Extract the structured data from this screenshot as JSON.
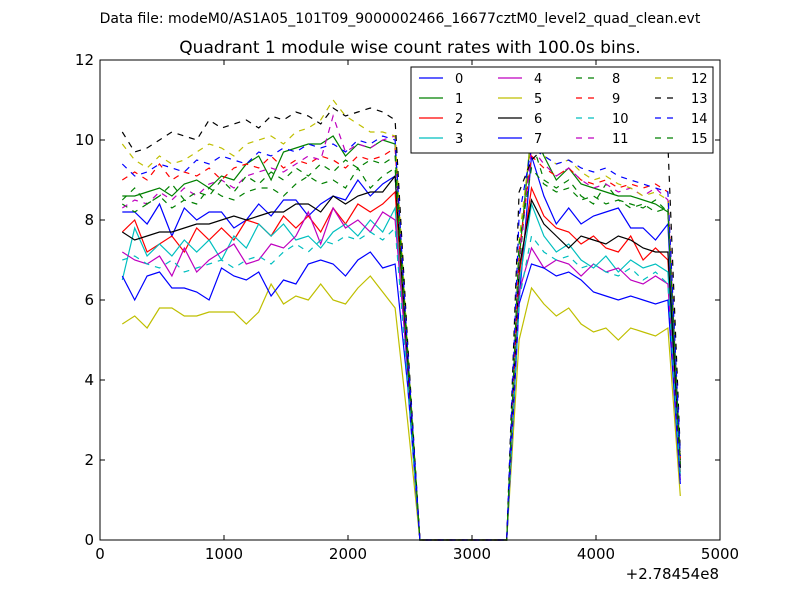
{
  "chart_data": {
    "type": "line",
    "suptitle": "Data file: modeM0/AS1A05_101T09_9000002466_16677cztM0_level2_quad_clean.evt",
    "title": "Quadrant 1 module wise count rates with 100.0s bins.",
    "xlabel": "",
    "ylabel": "",
    "x_offset_label": "+2.78454e8",
    "xlim": [
      0,
      5000
    ],
    "ylim": [
      0,
      12
    ],
    "xticks": [
      0,
      1000,
      2000,
      3000,
      4000,
      5000
    ],
    "yticks": [
      0,
      2,
      4,
      6,
      8,
      10,
      12
    ],
    "xtick_labels": [
      "0",
      "1000",
      "2000",
      "3000",
      "4000",
      "5000"
    ],
    "ytick_labels": [
      "0",
      "2",
      "4",
      "6",
      "8",
      "10",
      "12"
    ],
    "grid": false,
    "legend_position": "top-right",
    "legend_columns": 4,
    "x": [
      180,
      280,
      380,
      480,
      580,
      680,
      780,
      880,
      980,
      1080,
      1180,
      1280,
      1380,
      1480,
      1580,
      1680,
      1780,
      1880,
      1980,
      2080,
      2180,
      2280,
      2380,
      2480,
      2580,
      2680,
      2780,
      2880,
      2980,
      3080,
      3180,
      3280,
      3380,
      3480,
      3580,
      3680,
      3780,
      3880,
      3980,
      4080,
      4180,
      4280,
      4380,
      4480,
      4580,
      4680
    ],
    "series": [
      {
        "name": "0",
        "color": "#0000ff",
        "dash": false,
        "values": [
          8.2,
          8.2,
          7.9,
          8.4,
          7.6,
          8.3,
          8.0,
          8.2,
          8.2,
          7.8,
          8.0,
          8.4,
          8.1,
          8.5,
          8.5,
          8.1,
          8.4,
          8.6,
          8.5,
          9.0,
          8.6,
          8.9,
          9.1,
          4.5,
          0,
          0,
          0,
          0,
          0,
          0,
          0,
          0,
          6.0,
          9.6,
          8.6,
          7.9,
          8.3,
          7.9,
          8.1,
          8.2,
          8.3,
          7.8,
          7.8,
          7.5,
          7.9,
          1.8
        ]
      },
      {
        "name": "1",
        "color": "#008000",
        "dash": false,
        "values": [
          8.6,
          8.6,
          8.7,
          8.8,
          8.6,
          8.9,
          9.0,
          8.8,
          9.1,
          9.0,
          9.4,
          9.6,
          9.0,
          9.7,
          9.8,
          9.9,
          9.9,
          10.1,
          9.6,
          9.9,
          9.8,
          10.0,
          9.9,
          4.6,
          0,
          0,
          0,
          0,
          0,
          0,
          0,
          0,
          7.0,
          10.3,
          9.6,
          9.0,
          9.3,
          8.9,
          8.8,
          8.7,
          8.6,
          8.6,
          8.5,
          8.4,
          8.2,
          2.0
        ]
      },
      {
        "name": "2",
        "color": "#ff0000",
        "dash": false,
        "values": [
          7.7,
          8.0,
          7.2,
          7.4,
          7.6,
          7.2,
          7.8,
          7.5,
          7.8,
          7.5,
          8.0,
          7.9,
          7.6,
          8.1,
          7.8,
          8.1,
          7.7,
          8.3,
          7.9,
          8.4,
          8.2,
          8.4,
          8.7,
          4.4,
          0,
          0,
          0,
          0,
          0,
          0,
          0,
          0,
          6.6,
          8.8,
          8.1,
          7.8,
          7.7,
          7.4,
          7.6,
          7.3,
          7.2,
          7.6,
          7.0,
          7.3,
          7.0,
          1.7
        ]
      },
      {
        "name": "3",
        "color": "#00bfbf",
        "dash": false,
        "values": [
          6.5,
          7.8,
          7.1,
          7.4,
          7.1,
          7.5,
          7.2,
          7.5,
          7.0,
          7.6,
          7.3,
          7.9,
          7.6,
          7.9,
          7.5,
          7.6,
          7.3,
          7.7,
          7.9,
          7.6,
          8.0,
          7.7,
          8.3,
          4.2,
          0,
          0,
          0,
          0,
          0,
          0,
          0,
          0,
          6.4,
          8.4,
          7.6,
          7.2,
          7.4,
          7.0,
          6.8,
          7.1,
          6.7,
          7.0,
          6.8,
          6.9,
          6.7,
          1.6
        ]
      },
      {
        "name": "4",
        "color": "#bf00bf",
        "dash": false,
        "values": [
          7.2,
          7.0,
          6.9,
          7.1,
          6.6,
          7.3,
          6.7,
          7.0,
          7.2,
          7.4,
          6.9,
          7.0,
          7.4,
          7.3,
          7.6,
          8.2,
          7.4,
          8.3,
          7.8,
          8.0,
          7.7,
          8.2,
          8.0,
          4.3,
          0,
          0,
          0,
          0,
          0,
          0,
          0,
          0,
          6.2,
          7.3,
          6.8,
          7.0,
          6.9,
          6.6,
          6.9,
          6.7,
          6.8,
          6.5,
          6.4,
          6.6,
          6.4,
          1.5
        ]
      },
      {
        "name": "5",
        "color": "#bfbf00",
        "dash": false,
        "values": [
          5.4,
          5.6,
          5.3,
          5.8,
          5.8,
          5.6,
          5.6,
          5.7,
          5.7,
          5.7,
          5.4,
          5.7,
          6.4,
          5.9,
          6.1,
          6.0,
          6.4,
          6.0,
          5.9,
          6.3,
          6.6,
          6.2,
          5.8,
          3.0,
          0,
          0,
          0,
          0,
          0,
          0,
          0,
          0,
          5.0,
          6.3,
          5.9,
          5.6,
          5.8,
          5.4,
          5.2,
          5.3,
          5.0,
          5.3,
          5.2,
          5.1,
          5.3,
          1.1
        ]
      },
      {
        "name": "6",
        "color": "#000000",
        "dash": false,
        "values": [
          7.7,
          7.5,
          7.6,
          7.7,
          7.7,
          7.8,
          7.9,
          7.9,
          8.0,
          8.1,
          8.0,
          8.1,
          8.2,
          8.2,
          8.4,
          8.4,
          8.2,
          8.6,
          8.4,
          8.6,
          8.7,
          8.7,
          9.1,
          4.5,
          0,
          0,
          0,
          0,
          0,
          0,
          0,
          0,
          6.8,
          8.5,
          7.9,
          7.6,
          7.3,
          7.6,
          7.5,
          7.4,
          7.6,
          7.5,
          7.3,
          7.2,
          7.2,
          1.8
        ]
      },
      {
        "name": "7",
        "color": "#0000ff",
        "dash": false,
        "values": [
          6.6,
          6.0,
          6.6,
          6.7,
          6.3,
          6.3,
          6.2,
          6.0,
          6.8,
          6.6,
          6.5,
          6.7,
          6.1,
          6.5,
          6.4,
          6.9,
          7.0,
          6.9,
          6.6,
          7.0,
          7.2,
          6.8,
          6.9,
          3.9,
          0,
          0,
          0,
          0,
          0,
          0,
          0,
          0,
          5.9,
          6.9,
          6.8,
          6.6,
          6.7,
          6.5,
          6.2,
          6.1,
          6.0,
          6.1,
          6.0,
          5.9,
          6.0,
          1.4
        ]
      },
      {
        "name": "8",
        "color": "#008000",
        "dash": true,
        "values": [
          8.4,
          8.2,
          8.4,
          8.6,
          8.3,
          8.5,
          8.4,
          8.8,
          8.6,
          8.5,
          8.7,
          8.8,
          8.8,
          8.6,
          8.9,
          9.1,
          8.9,
          9.0,
          8.8,
          9.3,
          8.8,
          9.1,
          9.3,
          4.6,
          0,
          0,
          0,
          0,
          0,
          0,
          0,
          0,
          6.8,
          10.0,
          9.0,
          8.8,
          9.0,
          8.6,
          8.4,
          8.9,
          8.5,
          8.4,
          8.3,
          8.5,
          8.2,
          1.9
        ]
      },
      {
        "name": "9",
        "color": "#ff0000",
        "dash": true,
        "values": [
          9.0,
          9.2,
          9.0,
          9.4,
          9.0,
          9.2,
          9.1,
          9.3,
          9.0,
          9.3,
          9.4,
          9.3,
          9.6,
          9.3,
          9.5,
          9.4,
          9.6,
          9.5,
          9.3,
          9.6,
          9.5,
          9.6,
          9.8,
          4.8,
          0,
          0,
          0,
          0,
          0,
          0,
          0,
          0,
          7.2,
          9.6,
          9.3,
          9.1,
          9.3,
          9.0,
          8.9,
          9.0,
          8.8,
          8.9,
          8.8,
          8.9,
          8.7,
          2.0
        ]
      },
      {
        "name": "10",
        "color": "#00bfbf",
        "dash": true,
        "values": [
          7.0,
          7.1,
          6.9,
          6.8,
          7.0,
          6.7,
          6.8,
          6.9,
          7.0,
          6.8,
          7.0,
          7.1,
          6.9,
          7.2,
          7.4,
          7.2,
          7.5,
          7.4,
          7.6,
          7.5,
          7.7,
          7.5,
          7.8,
          4.0,
          0,
          0,
          0,
          0,
          0,
          0,
          0,
          0,
          6.0,
          7.6,
          7.2,
          7.0,
          7.1,
          6.8,
          6.9,
          6.7,
          6.6,
          6.8,
          6.5,
          6.7,
          6.4,
          1.6
        ]
      },
      {
        "name": "11",
        "color": "#bf00bf",
        "dash": true,
        "values": [
          8.3,
          8.5,
          8.4,
          8.7,
          8.5,
          8.8,
          8.6,
          8.9,
          9.0,
          8.8,
          9.1,
          9.2,
          9.3,
          9.2,
          9.4,
          9.6,
          9.5,
          10.6,
          9.7,
          9.9,
          9.8,
          10.0,
          10.1,
          4.7,
          0,
          0,
          0,
          0,
          0,
          0,
          0,
          0,
          7.0,
          9.8,
          9.4,
          9.1,
          9.3,
          9.0,
          8.8,
          8.9,
          8.7,
          8.8,
          8.6,
          8.8,
          8.5,
          1.9
        ]
      },
      {
        "name": "12",
        "color": "#bfbf00",
        "dash": true,
        "values": [
          9.9,
          9.5,
          9.3,
          9.6,
          9.4,
          9.5,
          9.7,
          9.9,
          9.8,
          9.6,
          9.9,
          10.0,
          10.1,
          9.9,
          10.2,
          10.3,
          10.5,
          11.0,
          10.6,
          10.4,
          10.2,
          10.2,
          10.1,
          4.9,
          0,
          0,
          0,
          0,
          0,
          0,
          0,
          0,
          7.5,
          10.1,
          9.6,
          9.4,
          9.5,
          9.2,
          9.0,
          9.1,
          8.9,
          8.8,
          8.6,
          8.7,
          8.5,
          2.1
        ]
      },
      {
        "name": "13",
        "color": "#000000",
        "dash": true,
        "values": [
          10.2,
          9.7,
          9.8,
          10.0,
          10.2,
          10.1,
          10.0,
          10.5,
          10.3,
          10.4,
          10.5,
          10.3,
          10.6,
          10.5,
          10.7,
          10.6,
          10.4,
          10.8,
          10.6,
          10.7,
          10.8,
          10.7,
          10.5,
          5.0,
          0,
          0,
          0,
          0,
          0,
          0,
          0,
          0,
          8.7,
          9.5,
          9.8,
          10.0,
          10.2,
          9.9,
          10.0,
          10.1,
          9.8,
          9.9,
          10.0,
          10.1,
          9.9,
          2.2
        ]
      },
      {
        "name": "14",
        "color": "#0000ff",
        "dash": true,
        "values": [
          9.4,
          9.1,
          9.2,
          9.4,
          9.3,
          9.2,
          9.5,
          9.4,
          9.6,
          9.5,
          9.4,
          9.7,
          9.6,
          9.8,
          9.7,
          9.9,
          9.8,
          9.9,
          9.7,
          10.0,
          9.9,
          10.1,
          10.0,
          4.8,
          0,
          0,
          0,
          0,
          0,
          0,
          0,
          0,
          8.1,
          9.8,
          9.6,
          9.4,
          9.5,
          9.3,
          9.2,
          9.3,
          9.1,
          9.0,
          8.9,
          8.8,
          8.7,
          2.1
        ]
      },
      {
        "name": "15",
        "color": "#008000",
        "dash": true,
        "values": [
          8.5,
          8.8,
          8.4,
          8.6,
          8.9,
          8.5,
          8.7,
          8.6,
          9.0,
          8.7,
          9.1,
          8.9,
          9.2,
          9.0,
          9.3,
          9.1,
          9.4,
          9.2,
          9.5,
          9.3,
          9.5,
          9.4,
          9.6,
          4.7,
          0,
          0,
          0,
          0,
          0,
          0,
          0,
          0,
          7.4,
          9.3,
          8.9,
          8.7,
          8.8,
          8.5,
          8.6,
          8.4,
          8.5,
          8.3,
          8.4,
          8.2,
          8.3,
          1.9
        ]
      }
    ]
  }
}
